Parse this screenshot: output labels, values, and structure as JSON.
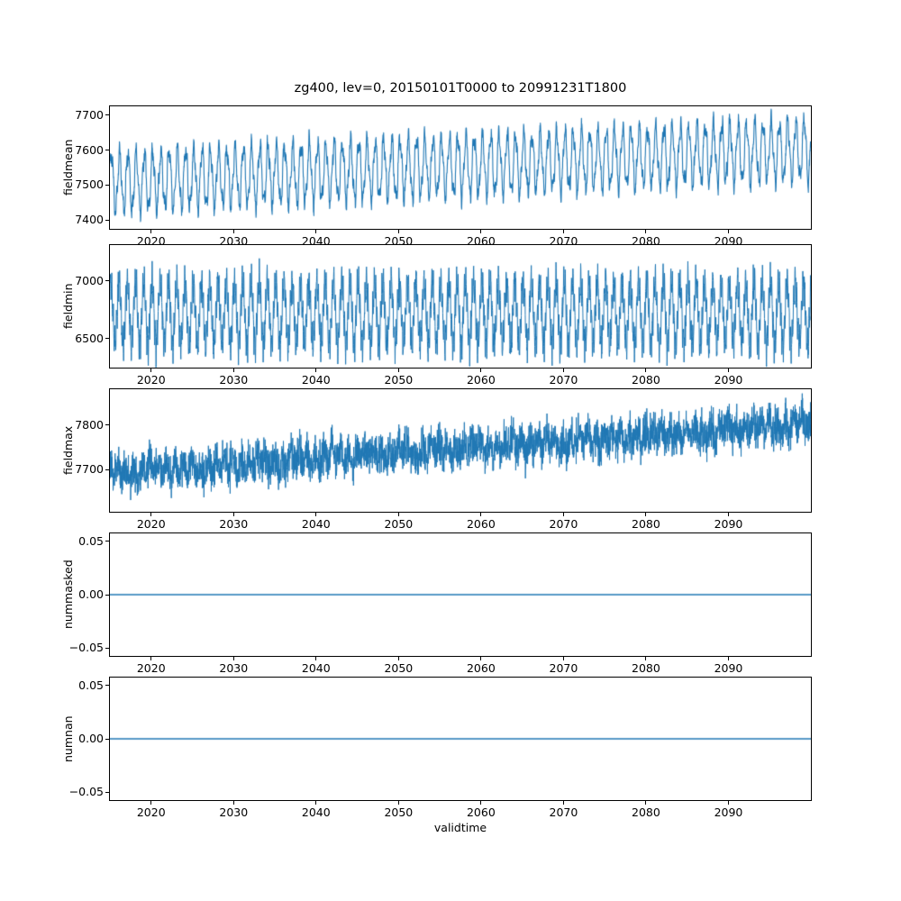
{
  "figure": {
    "title": "zg400, lev=0, 20150101T0000 to 20991231T1800",
    "xlabel": "validtime",
    "accent_color": "#1f77b4",
    "background": "#ffffff"
  },
  "chart_data": [
    {
      "type": "line",
      "title": "",
      "ylabel": "fieldmean",
      "legend": null,
      "grid": false,
      "x": {
        "label": "",
        "lim": [
          2015,
          2100
        ],
        "ticks": [
          2020,
          2030,
          2040,
          2050,
          2060,
          2070,
          2080,
          2090
        ],
        "tick_labels": [
          "2020",
          "2030",
          "2040",
          "2050",
          "2060",
          "2070",
          "2080",
          "2090"
        ]
      },
      "y": {
        "lim": [
          7375,
          7725
        ],
        "ticks": [
          7400,
          7500,
          7600,
          7700
        ],
        "tick_labels": [
          "7400",
          "7500",
          "7600",
          "7700"
        ]
      },
      "series": {
        "name": "fieldmean",
        "color": "#1f77b4",
        "description": "Dense annual oscillation (~plus/minus 110) around a mean rising from ~7510 in 2015 to ~7605 by 2099; yearly peaks ~7650 rising to ~7710, troughs ~7390 rising to ~7490",
        "approx_start_mean": 7510,
        "approx_end_mean": 7605,
        "approx_min": 7385,
        "approx_max": 7710,
        "generator": {
          "kind": "trend+seasonal+noise",
          "base": 7508,
          "trend": 95,
          "components": [
            {
              "amp": 82,
              "freq": 1,
              "phase": 0.4
            },
            {
              "amp": 22,
              "freq": 2.57,
              "phase": 1.2
            },
            {
              "amp": 10,
              "freq": 6.3,
              "phase": 0.7
            }
          ],
          "noise": 7,
          "seed": 11,
          "n": 3600,
          "linewidth": 1.1
        }
      }
    },
    {
      "type": "line",
      "title": "",
      "ylabel": "fieldmin",
      "legend": null,
      "grid": false,
      "x": {
        "label": "",
        "lim": [
          2015,
          2100
        ],
        "ticks": [
          2020,
          2030,
          2040,
          2050,
          2060,
          2070,
          2080,
          2090
        ],
        "tick_labels": [
          "2020",
          "2030",
          "2040",
          "2050",
          "2060",
          "2070",
          "2080",
          "2090"
        ]
      },
      "y": {
        "lim": [
          6250,
          7310
        ],
        "ticks": [
          6500,
          7000
        ],
        "tick_labels": [
          "6500",
          "7000"
        ]
      },
      "series": {
        "name": "fieldmin",
        "color": "#1f77b4",
        "description": "Very dense spiky oscillation with no trend; core band ~6450-6950 around mean ~6700, upward spikes to ~7200-7250 and downward spikes to ~6270-6350",
        "approx_start_mean": 6700,
        "approx_end_mean": 6700,
        "approx_min": 6270,
        "approx_max": 7250,
        "generator": {
          "kind": "trend+seasonal+noise",
          "base": 6720,
          "trend": 0,
          "components": [
            {
              "amp": 270,
              "freq": 1,
              "phase": 0.9
            },
            {
              "amp": 115,
              "freq": 5.31,
              "phase": 0.3
            },
            {
              "amp": 45,
              "freq": 11.7,
              "phase": 2.1
            }
          ],
          "noise": 25,
          "seed": 7,
          "n": 4200,
          "linewidth": 1.0
        }
      }
    },
    {
      "type": "line",
      "title": "",
      "ylabel": "fieldmax",
      "legend": null,
      "grid": false,
      "x": {
        "label": "",
        "lim": [
          2015,
          2100
        ],
        "ticks": [
          2020,
          2030,
          2040,
          2050,
          2060,
          2070,
          2080,
          2090
        ],
        "tick_labels": [
          "2020",
          "2030",
          "2040",
          "2050",
          "2060",
          "2070",
          "2080",
          "2090"
        ]
      },
      "y": {
        "lim": [
          7605,
          7880
        ],
        "ticks": [
          7700,
          7800
        ],
        "tick_labels": [
          "7700",
          "7800"
        ]
      },
      "series": {
        "name": "fieldmax",
        "color": "#1f77b4",
        "description": "Noisy band (~plus/minus 60) trending upward from ~7695 in 2015 to ~7805 by 2099; early range ~7630-7770, late range ~7740-7870",
        "approx_start_mean": 7695,
        "approx_end_mean": 7805,
        "approx_min": 7625,
        "approx_max": 7870,
        "generator": {
          "kind": "trend+seasonal+noise",
          "base": 7692,
          "trend": 110,
          "components": [
            {
              "amp": 14,
              "freq": 1,
              "phase": 2.0
            },
            {
              "amp": 8,
              "freq": 0.23,
              "phase": 0.5
            }
          ],
          "noise": 21,
          "seed": 23,
          "n": 4200,
          "linewidth": 1.0
        }
      }
    },
    {
      "type": "line",
      "title": "",
      "ylabel": "nummasked",
      "legend": null,
      "grid": false,
      "x": {
        "label": "",
        "lim": [
          2015,
          2100
        ],
        "ticks": [
          2020,
          2030,
          2040,
          2050,
          2060,
          2070,
          2080,
          2090
        ],
        "tick_labels": [
          "2020",
          "2030",
          "2040",
          "2050",
          "2060",
          "2070",
          "2080",
          "2090"
        ]
      },
      "y": {
        "lim": [
          -0.0575,
          0.0575
        ],
        "ticks": [
          -0.05,
          0,
          0.05
        ],
        "tick_labels": [
          "−0.05",
          "0.00",
          "0.05"
        ]
      },
      "series": {
        "name": "nummasked",
        "color": "#1f77b4",
        "description": "Constant value 0.00 across the whole period 2015-2099",
        "constant_value": 0,
        "generator": {
          "kind": "constant",
          "base": 0,
          "trend": 0,
          "components": [],
          "noise": 0,
          "seed": 1,
          "n": 400,
          "linewidth": 1.5
        }
      }
    },
    {
      "type": "line",
      "title": "",
      "ylabel": "numnan",
      "legend": null,
      "grid": false,
      "x": {
        "label": "validtime",
        "lim": [
          2015,
          2100
        ],
        "ticks": [
          2020,
          2030,
          2040,
          2050,
          2060,
          2070,
          2080,
          2090
        ],
        "tick_labels": [
          "2020",
          "2030",
          "2040",
          "2050",
          "2060",
          "2070",
          "2080",
          "2090"
        ]
      },
      "y": {
        "lim": [
          -0.0575,
          0.0575
        ],
        "ticks": [
          -0.05,
          0,
          0.05
        ],
        "tick_labels": [
          "−0.05",
          "0.00",
          "0.05"
        ]
      },
      "series": {
        "name": "numnan",
        "color": "#1f77b4",
        "description": "Constant value 0.00 across the whole period 2015-2099",
        "constant_value": 0,
        "generator": {
          "kind": "constant",
          "base": 0,
          "trend": 0,
          "components": [],
          "noise": 0,
          "seed": 1,
          "n": 400,
          "linewidth": 1.5
        }
      }
    }
  ]
}
